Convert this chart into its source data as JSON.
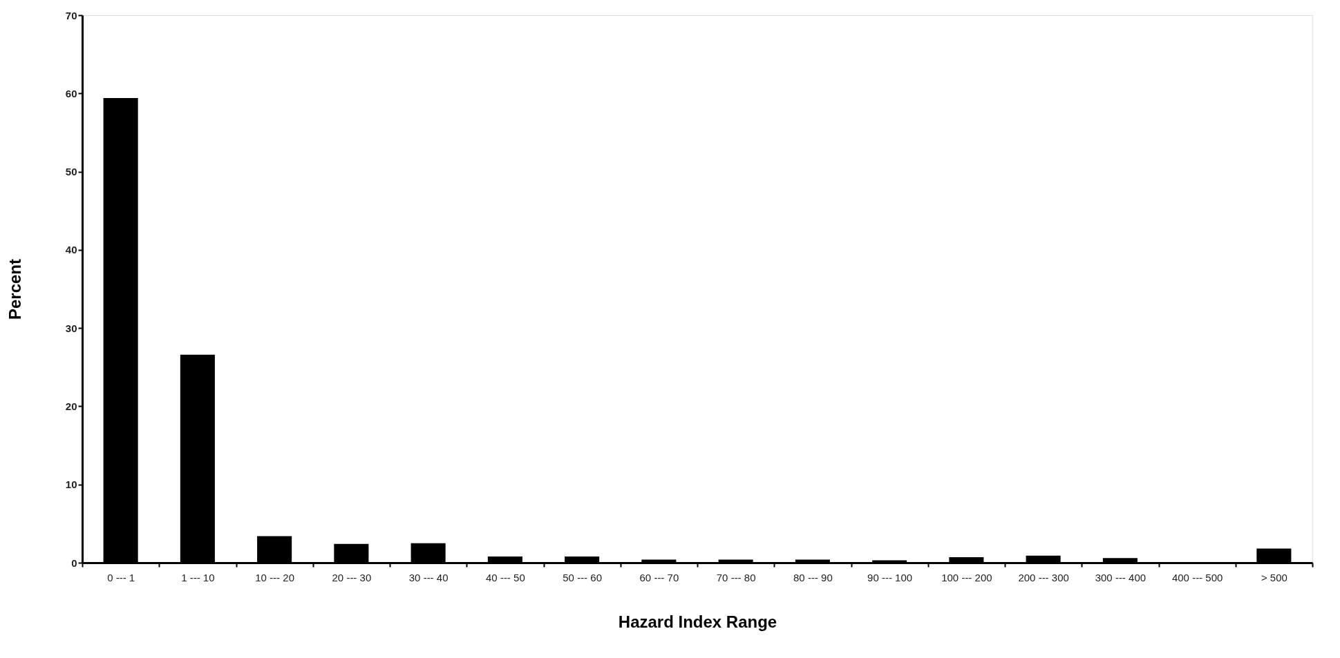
{
  "chart_data": {
    "type": "bar",
    "xlabel": "Hazard Index Range",
    "ylabel": "Percent",
    "categories": [
      "0 --- 1",
      "1 --- 10",
      "10 --- 20",
      "20 --- 30",
      "30 --- 40",
      "40 --- 50",
      "50 --- 60",
      "60 --- 70",
      "70 --- 80",
      "80 --- 90",
      "90 --- 100",
      "100 --- 200",
      "200 --- 300",
      "300 --- 400",
      "400 --- 500",
      "> 500"
    ],
    "values": [
      59.4,
      26.6,
      3.4,
      2.4,
      2.5,
      0.8,
      0.8,
      0.4,
      0.4,
      0.4,
      0.3,
      0.7,
      0.9,
      0.6,
      0,
      1.8
    ],
    "color": "#000000",
    "ylim": [
      0,
      70
    ],
    "yticks": [
      0,
      10,
      20,
      30,
      40,
      50,
      60,
      70
    ],
    "grid": false
  }
}
